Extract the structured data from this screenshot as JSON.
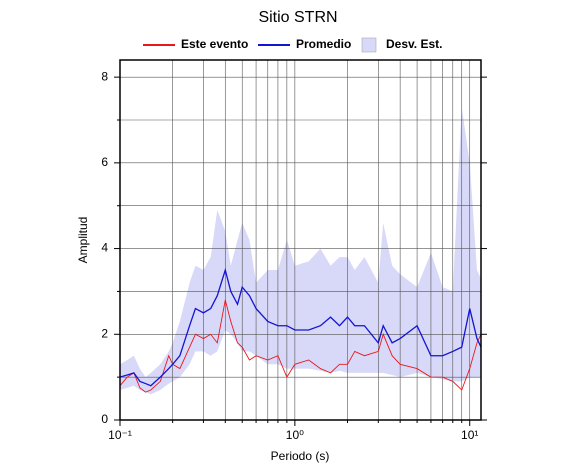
{
  "chart_data": {
    "type": "line",
    "title": "Sitio STRN",
    "xlabel": "Periodo (s)",
    "ylabel": "Amplitud",
    "xscale": "log",
    "grid": true,
    "legend": "top",
    "xlim": [
      0.1,
      11.6
    ],
    "ylim": [
      0,
      8.4
    ],
    "xticks": [
      {
        "value": 0.1,
        "label": "10⁻¹"
      },
      {
        "value": 1,
        "label": "10⁰"
      },
      {
        "value": 10,
        "label": "10¹"
      }
    ],
    "xminor": [
      0.2,
      0.3,
      0.4,
      0.5,
      0.6,
      0.7,
      0.8,
      0.9,
      2,
      3,
      4,
      5,
      6,
      7,
      8,
      9
    ],
    "yticks": [
      0,
      2,
      4,
      6,
      8
    ],
    "yminor": [
      1,
      3,
      5,
      7
    ],
    "x": [
      0.1,
      0.11,
      0.12,
      0.13,
      0.14,
      0.15,
      0.17,
      0.19,
      0.2,
      0.22,
      0.25,
      0.27,
      0.3,
      0.33,
      0.36,
      0.4,
      0.43,
      0.47,
      0.5,
      0.55,
      0.6,
      0.7,
      0.8,
      0.9,
      1.0,
      1.2,
      1.4,
      1.6,
      1.8,
      2.0,
      2.2,
      2.5,
      3.0,
      3.2,
      3.6,
      4.0,
      5.0,
      6.0,
      7.0,
      8.0,
      9.0,
      10,
      11,
      11.6
    ],
    "series": [
      {
        "name": "Este evento",
        "color": "#e8191c",
        "values": [
          0.8,
          1.0,
          1.1,
          0.75,
          0.65,
          0.7,
          0.9,
          1.5,
          1.3,
          1.2,
          1.7,
          2.0,
          1.9,
          2.0,
          1.8,
          2.8,
          2.3,
          1.8,
          1.7,
          1.4,
          1.5,
          1.4,
          1.5,
          1.0,
          1.3,
          1.4,
          1.2,
          1.1,
          1.3,
          1.3,
          1.6,
          1.5,
          1.6,
          2.0,
          1.5,
          1.3,
          1.2,
          1.0,
          1.0,
          0.9,
          0.7,
          1.2,
          1.8,
          2.0
        ]
      },
      {
        "name": "Promedio",
        "color": "#1414d2",
        "values": [
          1.0,
          1.05,
          1.1,
          0.9,
          0.85,
          0.8,
          1.0,
          1.2,
          1.3,
          1.5,
          2.2,
          2.6,
          2.5,
          2.6,
          2.9,
          3.5,
          3.0,
          2.7,
          3.1,
          2.9,
          2.6,
          2.3,
          2.2,
          2.2,
          2.1,
          2.1,
          2.2,
          2.4,
          2.2,
          2.4,
          2.2,
          2.2,
          1.8,
          2.2,
          1.8,
          1.9,
          2.2,
          1.5,
          1.5,
          1.6,
          1.7,
          2.6,
          1.9,
          1.7
        ]
      },
      {
        "name": "Desv. Est.",
        "color": "#d8d8f8",
        "upper": [
          1.3,
          1.4,
          1.5,
          1.2,
          1.0,
          1.1,
          1.3,
          1.6,
          1.8,
          2.3,
          3.2,
          3.6,
          3.5,
          3.8,
          4.9,
          4.4,
          3.6,
          4.2,
          4.6,
          4.2,
          3.2,
          3.5,
          3.5,
          4.2,
          3.6,
          3.7,
          4.0,
          3.6,
          3.8,
          3.8,
          3.5,
          3.8,
          3.2,
          4.6,
          3.6,
          3.4,
          3.1,
          3.9,
          3.1,
          3.0,
          7.3,
          6.0,
          3.5,
          3.3
        ],
        "lower": [
          0.7,
          0.75,
          0.8,
          0.7,
          0.65,
          0.6,
          0.7,
          0.85,
          0.9,
          1.0,
          1.3,
          1.6,
          1.6,
          1.5,
          1.6,
          2.1,
          2.0,
          1.8,
          1.6,
          1.6,
          1.5,
          1.3,
          1.3,
          1.2,
          1.2,
          1.2,
          1.15,
          1.1,
          1.15,
          1.1,
          1.1,
          1.1,
          1.1,
          1.1,
          1.05,
          1.0,
          1.1,
          1.0,
          0.95,
          0.9,
          0.9,
          1.0,
          1.0,
          1.0
        ]
      }
    ]
  }
}
